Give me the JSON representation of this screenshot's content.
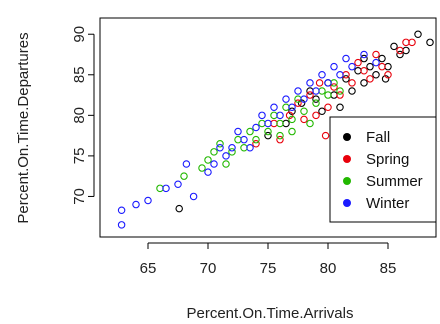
{
  "chart_data": {
    "type": "scatter",
    "xlabel": "Percent.On.Time.Arrivals",
    "ylabel": "Percent.On.Time.Departures",
    "xlim": [
      61,
      89
    ],
    "ylim": [
      65,
      92
    ],
    "xticks": [
      65,
      70,
      75,
      80,
      85
    ],
    "yticks": [
      70,
      75,
      80,
      85,
      90
    ],
    "grid": false,
    "legend_position": "bottom-right",
    "marker": "open-circle",
    "series": [
      {
        "name": "Fall",
        "color": "#000000",
        "points": [
          [
            67.6,
            68.5
          ],
          [
            75.0,
            77.5
          ],
          [
            76.5,
            79.0
          ],
          [
            77.0,
            80.5
          ],
          [
            77.8,
            81.5
          ],
          [
            78.5,
            83.0
          ],
          [
            79.0,
            82.0
          ],
          [
            79.5,
            80.5
          ],
          [
            80.0,
            84.0
          ],
          [
            80.5,
            82.5
          ],
          [
            81.0,
            81.0
          ],
          [
            81.5,
            84.5
          ],
          [
            82.0,
            83.0
          ],
          [
            82.5,
            85.5
          ],
          [
            83.0,
            84.0
          ],
          [
            83.5,
            86.0
          ],
          [
            84.0,
            85.0
          ],
          [
            84.5,
            87.0
          ],
          [
            85.0,
            86.0
          ],
          [
            85.5,
            88.5
          ],
          [
            86.0,
            87.5
          ],
          [
            86.5,
            88.0
          ],
          [
            87.5,
            90.0
          ],
          [
            88.5,
            89.0
          ],
          [
            83.0,
            87.0
          ],
          [
            84.8,
            84.5
          ]
        ]
      },
      {
        "name": "Spring",
        "color": "#e8000b",
        "points": [
          [
            74.0,
            76.5
          ],
          [
            75.5,
            79.0
          ],
          [
            76.0,
            77.0
          ],
          [
            76.8,
            80.0
          ],
          [
            77.5,
            81.5
          ],
          [
            78.0,
            79.5
          ],
          [
            78.5,
            82.5
          ],
          [
            79.0,
            80.0
          ],
          [
            79.3,
            84.0
          ],
          [
            80.0,
            81.0
          ],
          [
            80.5,
            83.5
          ],
          [
            81.0,
            82.5
          ],
          [
            81.5,
            85.0
          ],
          [
            82.0,
            84.0
          ],
          [
            82.5,
            86.5
          ],
          [
            83.0,
            85.5
          ],
          [
            83.5,
            84.5
          ],
          [
            84.0,
            87.5
          ],
          [
            84.5,
            86.0
          ],
          [
            85.0,
            85.0
          ],
          [
            86.0,
            88.0
          ],
          [
            86.5,
            89.0
          ],
          [
            87.0,
            89.0
          ],
          [
            79.8,
            77.5
          ]
        ]
      },
      {
        "name": "Summer",
        "color": "#22b800",
        "points": [
          [
            66.0,
            71.0
          ],
          [
            68.0,
            72.5
          ],
          [
            69.5,
            73.5
          ],
          [
            70.0,
            74.5
          ],
          [
            70.5,
            75.5
          ],
          [
            71.0,
            76.5
          ],
          [
            71.5,
            74.0
          ],
          [
            72.0,
            75.5
          ],
          [
            72.5,
            77.0
          ],
          [
            73.0,
            76.0
          ],
          [
            73.5,
            78.0
          ],
          [
            74.0,
            77.0
          ],
          [
            74.5,
            79.0
          ],
          [
            75.0,
            78.0
          ],
          [
            75.5,
            80.0
          ],
          [
            76.0,
            79.0
          ],
          [
            76.5,
            81.0
          ],
          [
            77.0,
            79.5
          ],
          [
            77.5,
            82.0
          ],
          [
            78.0,
            80.5
          ],
          [
            78.5,
            79.0
          ],
          [
            79.0,
            81.5
          ],
          [
            79.5,
            83.0
          ],
          [
            80.0,
            82.5
          ],
          [
            80.5,
            84.0
          ],
          [
            81.0,
            83.0
          ],
          [
            76.0,
            77.5
          ],
          [
            77.0,
            78.0
          ]
        ]
      },
      {
        "name": "Winter",
        "color": "#1a1aff",
        "points": [
          [
            62.8,
            66.5
          ],
          [
            62.8,
            68.3
          ],
          [
            64.0,
            69.0
          ],
          [
            65.0,
            69.5
          ],
          [
            66.5,
            71.0
          ],
          [
            67.5,
            71.5
          ],
          [
            68.2,
            74.0
          ],
          [
            68.8,
            70.0
          ],
          [
            70.0,
            73.0
          ],
          [
            70.5,
            74.0
          ],
          [
            71.5,
            75.0
          ],
          [
            72.0,
            76.0
          ],
          [
            72.5,
            78.0
          ],
          [
            73.0,
            77.0
          ],
          [
            73.5,
            76.0
          ],
          [
            74.0,
            78.5
          ],
          [
            74.5,
            80.0
          ],
          [
            75.0,
            79.0
          ],
          [
            75.5,
            81.0
          ],
          [
            76.0,
            80.0
          ],
          [
            76.5,
            82.0
          ],
          [
            77.0,
            81.0
          ],
          [
            77.5,
            83.0
          ],
          [
            78.0,
            82.0
          ],
          [
            78.5,
            84.0
          ],
          [
            79.0,
            83.0
          ],
          [
            79.5,
            85.0
          ],
          [
            80.0,
            84.0
          ],
          [
            80.5,
            86.0
          ],
          [
            81.0,
            85.0
          ],
          [
            81.5,
            87.0
          ],
          [
            82.0,
            86.0
          ],
          [
            83.0,
            87.5
          ],
          [
            84.0,
            86.5
          ],
          [
            71.0,
            76.0
          ]
        ]
      }
    ]
  }
}
